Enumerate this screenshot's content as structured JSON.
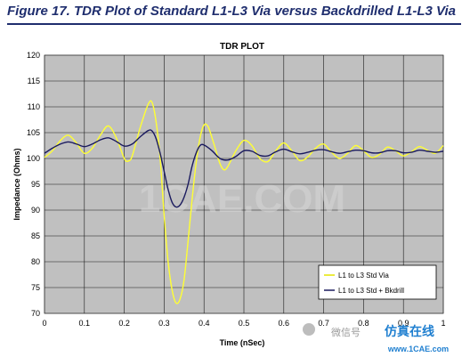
{
  "figure": {
    "caption": "Figure 17. TDR Plot of Standard L1-L3 Via versus Backdrilled L1-L3 Via"
  },
  "watermark": {
    "text": "1CAE.COM",
    "footer_brand": "仿真在线",
    "footer_wechat": "微信号",
    "footer_url": "www.1CAE.com"
  },
  "chart_data": {
    "type": "line",
    "title": "TDR PLOT",
    "xlabel": "Time (nSec)",
    "ylabel": "Impedance (Ohms)",
    "xlim": [
      0,
      1
    ],
    "ylim": [
      70,
      120
    ],
    "xticks": [
      0,
      0.1,
      0.2,
      0.3,
      0.4,
      0.5,
      0.6,
      0.7,
      0.8,
      0.9,
      1
    ],
    "xtick_labels": [
      "0",
      "0.1",
      "0.2",
      "0.3",
      "0.4",
      "0.5",
      "0.6",
      "0.7",
      "0.8",
      "0.9",
      "1"
    ],
    "yticks": [
      70,
      75,
      80,
      85,
      90,
      95,
      100,
      105,
      110,
      115,
      120
    ],
    "ytick_labels": [
      "70",
      "75",
      "80",
      "85",
      "90",
      "95",
      "100",
      "105",
      "110",
      "115",
      "120"
    ],
    "grid": true,
    "legend_position": "bottom-right",
    "series": [
      {
        "name": "L1 to L3 Std Via",
        "color": "#ffff33",
        "points": [
          [
            0,
            100.2
          ],
          [
            0.02,
            101.5
          ],
          [
            0.04,
            103.5
          ],
          [
            0.06,
            104.5
          ],
          [
            0.08,
            103.0
          ],
          [
            0.1,
            101.0
          ],
          [
            0.12,
            102.0
          ],
          [
            0.14,
            104.5
          ],
          [
            0.16,
            106.3
          ],
          [
            0.18,
            104.0
          ],
          [
            0.2,
            100.0
          ],
          [
            0.21,
            99.5
          ],
          [
            0.22,
            100.5
          ],
          [
            0.24,
            106.0
          ],
          [
            0.26,
            110.5
          ],
          [
            0.27,
            110.8
          ],
          [
            0.28,
            107.0
          ],
          [
            0.29,
            100.0
          ],
          [
            0.3,
            89.0
          ],
          [
            0.31,
            80.0
          ],
          [
            0.32,
            74.5
          ],
          [
            0.33,
            72.0
          ],
          [
            0.34,
            72.8
          ],
          [
            0.35,
            76.5
          ],
          [
            0.36,
            84.0
          ],
          [
            0.37,
            92.0
          ],
          [
            0.38,
            99.0
          ],
          [
            0.39,
            104.0
          ],
          [
            0.4,
            106.5
          ],
          [
            0.41,
            106.2
          ],
          [
            0.42,
            104.0
          ],
          [
            0.43,
            101.5
          ],
          [
            0.44,
            99.0
          ],
          [
            0.45,
            97.8
          ],
          [
            0.46,
            98.5
          ],
          [
            0.48,
            101.5
          ],
          [
            0.5,
            103.5
          ],
          [
            0.52,
            102.5
          ],
          [
            0.54,
            100.0
          ],
          [
            0.56,
            99.4
          ],
          [
            0.58,
            101.5
          ],
          [
            0.6,
            103.0
          ],
          [
            0.62,
            101.5
          ],
          [
            0.64,
            99.6
          ],
          [
            0.66,
            100.3
          ],
          [
            0.68,
            102.0
          ],
          [
            0.7,
            102.8
          ],
          [
            0.72,
            101.2
          ],
          [
            0.74,
            100.0
          ],
          [
            0.76,
            101.0
          ],
          [
            0.78,
            102.5
          ],
          [
            0.8,
            101.5
          ],
          [
            0.82,
            100.2
          ],
          [
            0.84,
            100.8
          ],
          [
            0.86,
            102.2
          ],
          [
            0.88,
            101.5
          ],
          [
            0.9,
            100.5
          ],
          [
            0.92,
            101.3
          ],
          [
            0.94,
            102.3
          ],
          [
            0.96,
            101.6
          ],
          [
            0.98,
            101.0
          ],
          [
            1.0,
            102.5
          ]
        ]
      },
      {
        "name": "L1 to L3 Std + Bkdrill",
        "color": "#1a1a5e",
        "points": [
          [
            0,
            101.0
          ],
          [
            0.02,
            102.0
          ],
          [
            0.04,
            102.8
          ],
          [
            0.06,
            103.2
          ],
          [
            0.08,
            102.8
          ],
          [
            0.1,
            102.3
          ],
          [
            0.12,
            102.8
          ],
          [
            0.14,
            103.6
          ],
          [
            0.16,
            104.0
          ],
          [
            0.18,
            103.3
          ],
          [
            0.2,
            102.4
          ],
          [
            0.22,
            102.8
          ],
          [
            0.24,
            104.2
          ],
          [
            0.26,
            105.4
          ],
          [
            0.27,
            105.3
          ],
          [
            0.28,
            103.8
          ],
          [
            0.29,
            101.0
          ],
          [
            0.3,
            97.5
          ],
          [
            0.31,
            94.0
          ],
          [
            0.32,
            91.5
          ],
          [
            0.33,
            90.6
          ],
          [
            0.34,
            91.0
          ],
          [
            0.35,
            92.5
          ],
          [
            0.36,
            95.0
          ],
          [
            0.37,
            98.5
          ],
          [
            0.38,
            101.0
          ],
          [
            0.39,
            102.5
          ],
          [
            0.4,
            102.6
          ],
          [
            0.42,
            101.5
          ],
          [
            0.44,
            100.0
          ],
          [
            0.46,
            99.7
          ],
          [
            0.48,
            100.4
          ],
          [
            0.5,
            101.5
          ],
          [
            0.52,
            101.4
          ],
          [
            0.54,
            100.6
          ],
          [
            0.56,
            100.5
          ],
          [
            0.58,
            101.3
          ],
          [
            0.6,
            101.8
          ],
          [
            0.62,
            101.3
          ],
          [
            0.64,
            100.9
          ],
          [
            0.66,
            101.2
          ],
          [
            0.68,
            101.6
          ],
          [
            0.7,
            101.7
          ],
          [
            0.72,
            101.3
          ],
          [
            0.74,
            101.0
          ],
          [
            0.76,
            101.3
          ],
          [
            0.78,
            101.6
          ],
          [
            0.8,
            101.5
          ],
          [
            0.82,
            101.1
          ],
          [
            0.84,
            101.1
          ],
          [
            0.86,
            101.5
          ],
          [
            0.88,
            101.5
          ],
          [
            0.9,
            101.1
          ],
          [
            0.92,
            101.2
          ],
          [
            0.94,
            101.6
          ],
          [
            0.96,
            101.4
          ],
          [
            0.98,
            101.2
          ],
          [
            1.0,
            101.4
          ]
        ]
      }
    ]
  }
}
